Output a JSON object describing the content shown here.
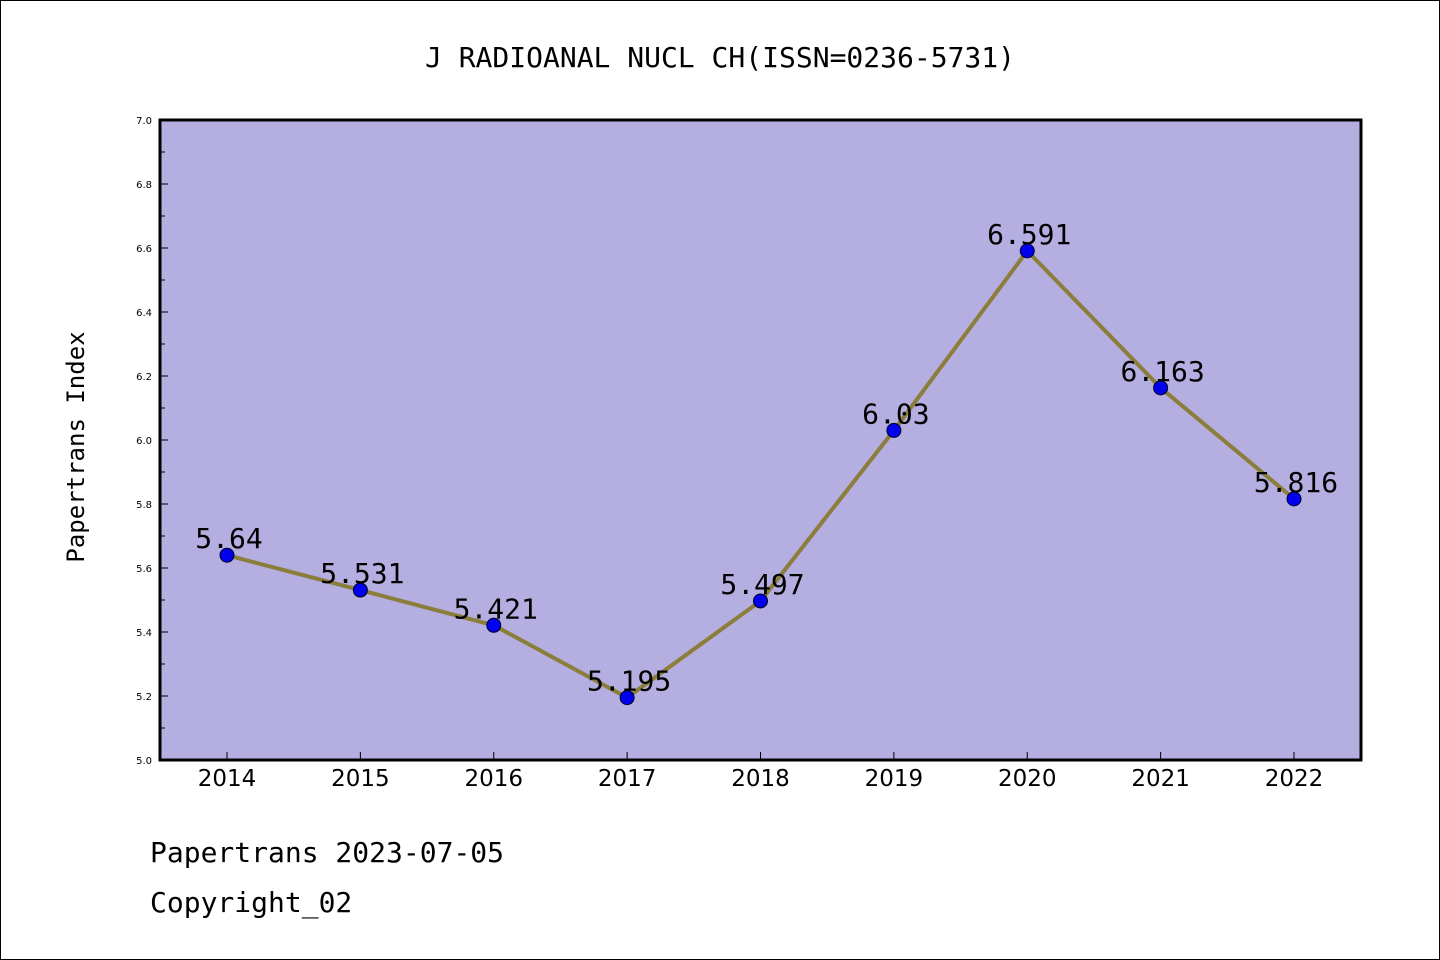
{
  "chart_data": {
    "type": "line",
    "title": "J RADIOANAL NUCL CH(ISSN=0236-5731)",
    "xlabel": "",
    "ylabel": "Papertrans Index",
    "categories": [
      "2014",
      "2015",
      "2016",
      "2017",
      "2018",
      "2019",
      "2020",
      "2021",
      "2022"
    ],
    "series": [
      {
        "values": [
          5.64,
          5.531,
          5.421,
          5.195,
          5.497,
          6.03,
          6.591,
          6.163,
          5.816
        ],
        "labels": [
          "5.64",
          "5.531",
          "5.421",
          "5.195",
          "5.497",
          "6.03",
          "6.591",
          "6.163",
          "5.816"
        ],
        "line_color": "#8b7d3a",
        "marker_color": "#0000ee"
      }
    ],
    "ylim": [
      5.0,
      7.0
    ],
    "y_ticks": [
      "5.0",
      "5.2",
      "5.4",
      "5.6",
      "5.8",
      "6.0",
      "6.2",
      "6.4",
      "6.6",
      "6.8",
      "7.0"
    ],
    "plot_background": "#b4aee1",
    "grid": false
  },
  "footer": {
    "line1": "Papertrans 2023-07-05",
    "line2": "Copyright_02"
  }
}
